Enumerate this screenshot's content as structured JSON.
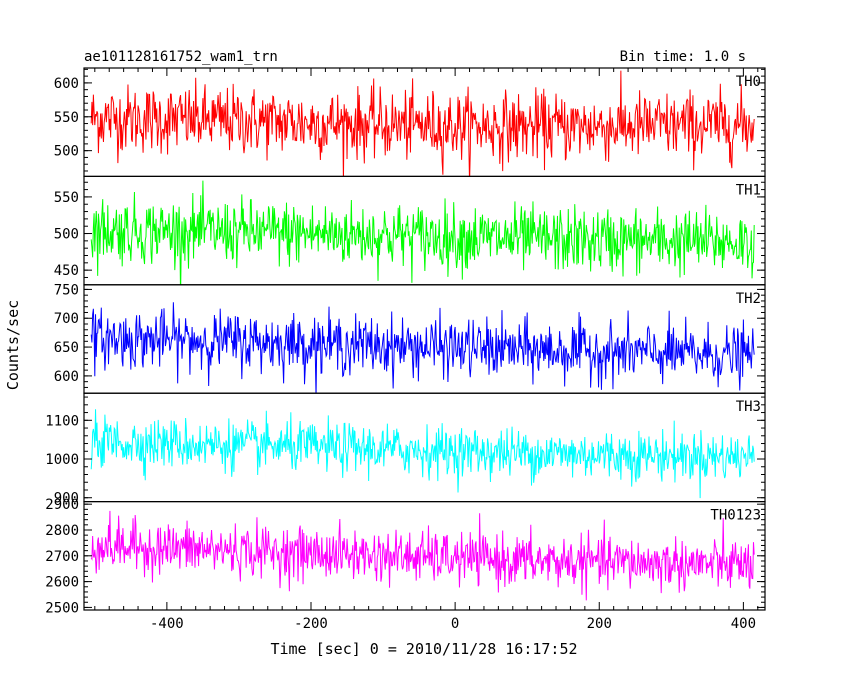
{
  "header": {
    "title": "ae101128161752_wam1_trn",
    "bin_time": "Bin time: 1.0 s"
  },
  "chart_data": {
    "type": "line",
    "title": "ae101128161752_wam1_trn",
    "subtitle": "Bin time: 1.0 s",
    "xlabel": "Time [sec] 0 = 2010/11/28 16:17:52",
    "ylabel": "Counts/sec",
    "xlim": [
      -515,
      430
    ],
    "x_range": [
      -505,
      415
    ],
    "x_step": 1.0,
    "x_ticks": [
      -400,
      -200,
      0,
      200,
      400
    ],
    "grid": false,
    "legend": "none",
    "panels": [
      {
        "name": "TH0",
        "color": "#ff0000",
        "ylim": [
          462,
          622
        ],
        "yticks": [
          500,
          550,
          600
        ],
        "trend": [
          [
            -505,
            548
          ],
          [
            -300,
            544
          ],
          [
            -100,
            538
          ],
          [
            100,
            535
          ],
          [
            415,
            538
          ]
        ],
        "noise_sd": 25
      },
      {
        "name": "TH1",
        "color": "#00ff00",
        "ylim": [
          430,
          578
        ],
        "yticks": [
          450,
          500,
          550
        ],
        "trend": [
          [
            -505,
            505
          ],
          [
            -300,
            502
          ],
          [
            -100,
            498
          ],
          [
            100,
            492
          ],
          [
            415,
            488
          ]
        ],
        "noise_sd": 22
      },
      {
        "name": "TH2",
        "color": "#0000ff",
        "ylim": [
          570,
          758
        ],
        "yticks": [
          600,
          650,
          700,
          750
        ],
        "trend": [
          [
            -505,
            665
          ],
          [
            -300,
            660
          ],
          [
            -100,
            652
          ],
          [
            100,
            645
          ],
          [
            415,
            635
          ]
        ],
        "noise_sd": 25
      },
      {
        "name": "TH3",
        "color": "#00ffff",
        "ylim": [
          890,
          1170
        ],
        "yticks": [
          900,
          1000,
          1100
        ],
        "trend": [
          [
            -505,
            1045
          ],
          [
            -300,
            1035
          ],
          [
            -100,
            1025
          ],
          [
            100,
            1015
          ],
          [
            415,
            1005
          ]
        ],
        "noise_sd": 32
      },
      {
        "name": "TH0123",
        "color": "#ff00ff",
        "ylim": [
          2490,
          2910
        ],
        "yticks": [
          2500,
          2600,
          2700,
          2800,
          2900
        ],
        "trend": [
          [
            -505,
            2740
          ],
          [
            -300,
            2720
          ],
          [
            -100,
            2700
          ],
          [
            100,
            2680
          ],
          [
            415,
            2665
          ]
        ],
        "noise_sd": 50
      }
    ]
  }
}
